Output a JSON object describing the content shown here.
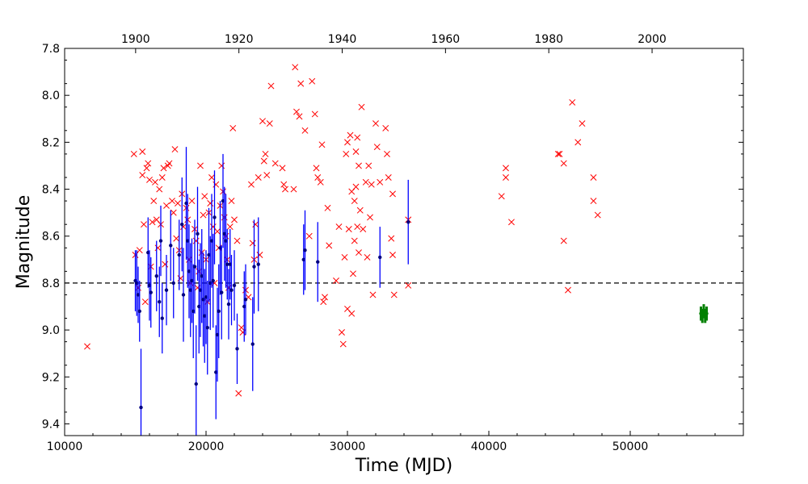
{
  "chart_data": {
    "type": "scatter",
    "title": "",
    "xlabel": "Time (MJD)",
    "ylabel": "Magnitude",
    "top_axis": {
      "ticks": [
        1900,
        1920,
        1940,
        1960,
        1980,
        2000
      ],
      "tick_labels": [
        "1900",
        "1920",
        "1940",
        "1960",
        "1980",
        "2000"
      ]
    },
    "xlim": [
      10000,
      58000
    ],
    "ylim": [
      9.45,
      7.8
    ],
    "y_inverted": true,
    "x_ticks": [
      10000,
      20000,
      30000,
      40000,
      50000
    ],
    "x_tick_labels": [
      "10000",
      "20000",
      "30000",
      "40000",
      "50000"
    ],
    "y_ticks": [
      7.8,
      8.0,
      8.2,
      8.4,
      8.6,
      8.8,
      9.0,
      9.2,
      9.4
    ],
    "y_tick_labels": [
      "7.8",
      "8.0",
      "8.2",
      "8.4",
      "8.6",
      "8.8",
      "9.0",
      "9.2",
      "9.4"
    ],
    "reference_line": {
      "y": 8.8,
      "style": "dashed",
      "color": "#000000"
    },
    "grid": false,
    "colors": {
      "crosses": "#ff0000",
      "errorbars": "#0000ff",
      "points": "#000080",
      "recent": "#008000"
    },
    "series": [
      {
        "marker": "x",
        "color": "#ff0000",
        "points": [
          [
            11600,
            9.07
          ],
          [
            14900,
            8.25
          ],
          [
            15000,
            8.68
          ],
          [
            15200,
            8.82
          ],
          [
            15300,
            8.66
          ],
          [
            15500,
            8.24
          ],
          [
            15500,
            8.34
          ],
          [
            15600,
            8.55
          ],
          [
            15700,
            8.88
          ],
          [
            15800,
            8.31
          ],
          [
            15900,
            8.29
          ],
          [
            16000,
            8.36
          ],
          [
            16100,
            8.73
          ],
          [
            16200,
            8.54
          ],
          [
            16300,
            8.45
          ],
          [
            16400,
            8.37
          ],
          [
            16500,
            8.53
          ],
          [
            16600,
            8.65
          ],
          [
            16700,
            8.4
          ],
          [
            16800,
            8.55
          ],
          [
            16900,
            8.35
          ],
          [
            17000,
            8.31
          ],
          [
            17100,
            8.72
          ],
          [
            17200,
            8.47
          ],
          [
            17300,
            8.3
          ],
          [
            17400,
            8.29
          ],
          [
            17600,
            8.45
          ],
          [
            17700,
            8.5
          ],
          [
            17800,
            8.23
          ],
          [
            17900,
            8.61
          ],
          [
            18000,
            8.46
          ],
          [
            18100,
            8.66
          ],
          [
            18200,
            8.78
          ],
          [
            18300,
            8.42
          ],
          [
            18400,
            8.56
          ],
          [
            18600,
            8.48
          ],
          [
            18700,
            8.53
          ],
          [
            18800,
            8.7
          ],
          [
            18900,
            8.8
          ],
          [
            19000,
            8.45
          ],
          [
            19200,
            8.57
          ],
          [
            19300,
            8.62
          ],
          [
            19400,
            8.82
          ],
          [
            19500,
            8.75
          ],
          [
            19600,
            8.3
          ],
          [
            19700,
            8.67
          ],
          [
            19800,
            8.51
          ],
          [
            19900,
            8.43
          ],
          [
            20000,
            8.7
          ],
          [
            20100,
            8.88
          ],
          [
            20200,
            8.5
          ],
          [
            20300,
            8.46
          ],
          [
            20400,
            8.35
          ],
          [
            20500,
            8.56
          ],
          [
            20600,
            8.8
          ],
          [
            20700,
            8.38
          ],
          [
            20800,
            8.58
          ],
          [
            20900,
            8.65
          ],
          [
            21000,
            8.47
          ],
          [
            21100,
            8.3
          ],
          [
            21200,
            8.41
          ],
          [
            21300,
            8.52
          ],
          [
            21400,
            8.6
          ],
          [
            21500,
            8.7
          ],
          [
            21600,
            8.82
          ],
          [
            21700,
            8.56
          ],
          [
            21800,
            8.45
          ],
          [
            21900,
            8.14
          ],
          [
            22000,
            8.53
          ],
          [
            22200,
            8.62
          ],
          [
            22300,
            9.27
          ],
          [
            22500,
            8.99
          ],
          [
            22600,
            9.01
          ],
          [
            22800,
            8.83
          ],
          [
            23000,
            8.86
          ],
          [
            23200,
            8.38
          ],
          [
            23300,
            8.63
          ],
          [
            23400,
            8.7
          ],
          [
            23500,
            8.55
          ],
          [
            23700,
            8.35
          ],
          [
            23800,
            8.68
          ],
          [
            24000,
            8.11
          ],
          [
            24100,
            8.28
          ],
          [
            24200,
            8.25
          ],
          [
            24300,
            8.34
          ],
          [
            24500,
            8.12
          ],
          [
            24600,
            7.96
          ],
          [
            24900,
            8.29
          ],
          [
            25400,
            8.31
          ],
          [
            25500,
            8.38
          ],
          [
            25600,
            8.4
          ],
          [
            26200,
            8.4
          ],
          [
            26300,
            7.88
          ],
          [
            26400,
            8.07
          ],
          [
            26600,
            8.09
          ],
          [
            26700,
            7.95
          ],
          [
            27000,
            8.15
          ],
          [
            27300,
            8.6
          ],
          [
            27500,
            7.94
          ],
          [
            27700,
            8.08
          ],
          [
            27800,
            8.31
          ],
          [
            27900,
            8.35
          ],
          [
            28100,
            8.37
          ],
          [
            28200,
            8.21
          ],
          [
            28300,
            8.88
          ],
          [
            28400,
            8.86
          ],
          [
            28600,
            8.48
          ],
          [
            28700,
            8.64
          ],
          [
            29200,
            8.79
          ],
          [
            29400,
            8.56
          ],
          [
            29600,
            9.01
          ],
          [
            29700,
            9.06
          ],
          [
            29800,
            8.69
          ],
          [
            29900,
            8.25
          ],
          [
            30000,
            8.2
          ],
          [
            30000,
            8.91
          ],
          [
            30100,
            8.57
          ],
          [
            30200,
            8.17
          ],
          [
            30300,
            8.41
          ],
          [
            30300,
            8.93
          ],
          [
            30400,
            8.76
          ],
          [
            30500,
            8.62
          ],
          [
            30500,
            8.45
          ],
          [
            30600,
            8.24
          ],
          [
            30600,
            8.39
          ],
          [
            30700,
            8.18
          ],
          [
            30700,
            8.56
          ],
          [
            30800,
            8.3
          ],
          [
            30800,
            8.67
          ],
          [
            30900,
            8.49
          ],
          [
            31000,
            8.05
          ],
          [
            31100,
            8.57
          ],
          [
            31300,
            8.37
          ],
          [
            31400,
            8.69
          ],
          [
            31500,
            8.3
          ],
          [
            31600,
            8.52
          ],
          [
            31700,
            8.38
          ],
          [
            31800,
            8.85
          ],
          [
            32000,
            8.12
          ],
          [
            32100,
            8.22
          ],
          [
            32300,
            8.37
          ],
          [
            32700,
            8.14
          ],
          [
            32800,
            8.25
          ],
          [
            32900,
            8.35
          ],
          [
            33100,
            8.61
          ],
          [
            33200,
            8.68
          ],
          [
            33200,
            8.42
          ],
          [
            33300,
            8.85
          ],
          [
            34300,
            8.53
          ],
          [
            34300,
            8.81
          ],
          [
            40900,
            8.43
          ],
          [
            41200,
            8.31
          ],
          [
            41200,
            8.35
          ],
          [
            41600,
            8.54
          ],
          [
            44900,
            8.25
          ],
          [
            45000,
            8.25
          ],
          [
            45300,
            8.29
          ],
          [
            45300,
            8.62
          ],
          [
            45600,
            8.83
          ],
          [
            45900,
            8.03
          ],
          [
            46300,
            8.2
          ],
          [
            46600,
            8.12
          ],
          [
            47400,
            8.35
          ],
          [
            47400,
            8.45
          ],
          [
            47700,
            8.51
          ]
        ]
      },
      {
        "marker": "point-with-errorbar",
        "color": "#000080",
        "errorbar_color": "#0000ff",
        "points": [
          [
            15000,
            8.79,
            0.13
          ],
          [
            15100,
            8.8,
            0.14
          ],
          [
            15200,
            8.85,
            0.12
          ],
          [
            15300,
            8.92,
            0.13
          ],
          [
            15400,
            9.33,
            0.25
          ],
          [
            15900,
            8.67,
            0.15
          ],
          [
            16000,
            8.81,
            0.15
          ],
          [
            16100,
            8.84,
            0.15
          ],
          [
            16500,
            8.77,
            0.15
          ],
          [
            16700,
            8.88,
            0.15
          ],
          [
            16800,
            8.62,
            0.15
          ],
          [
            16900,
            8.95,
            0.15
          ],
          [
            17200,
            8.83,
            0.15
          ],
          [
            17500,
            8.64,
            0.15
          ],
          [
            17700,
            8.8,
            0.15
          ],
          [
            18100,
            8.68,
            0.15
          ],
          [
            18300,
            8.55,
            0.2
          ],
          [
            18400,
            8.85,
            0.2
          ],
          [
            18600,
            8.46,
            0.24
          ],
          [
            18700,
            8.62,
            0.2
          ],
          [
            18800,
            8.75,
            0.2
          ],
          [
            18900,
            8.83,
            0.2
          ],
          [
            19000,
            8.79,
            0.18
          ],
          [
            19100,
            8.92,
            0.2
          ],
          [
            19200,
            8.73,
            0.2
          ],
          [
            19300,
            9.23,
            0.25
          ],
          [
            19400,
            8.59,
            0.2
          ],
          [
            19500,
            8.9,
            0.2
          ],
          [
            19600,
            8.83,
            0.2
          ],
          [
            19700,
            8.77,
            0.2
          ],
          [
            19800,
            8.87,
            0.2
          ],
          [
            19900,
            8.94,
            0.2
          ],
          [
            20000,
            8.86,
            0.2
          ],
          [
            20100,
            8.99,
            0.2
          ],
          [
            20200,
            8.68,
            0.2
          ],
          [
            20300,
            8.8,
            0.2
          ],
          [
            20400,
            8.62,
            0.2
          ],
          [
            20500,
            8.79,
            0.2
          ],
          [
            20600,
            8.52,
            0.2
          ],
          [
            20700,
            9.18,
            0.2
          ],
          [
            20800,
            9.02,
            0.2
          ],
          [
            20900,
            8.92,
            0.2
          ],
          [
            21000,
            8.65,
            0.2
          ],
          [
            21100,
            8.84,
            0.2
          ],
          [
            21200,
            8.45,
            0.2
          ],
          [
            21300,
            8.59,
            0.2
          ],
          [
            21400,
            8.62,
            0.2
          ],
          [
            21500,
            8.72,
            0.15
          ],
          [
            21600,
            8.89,
            0.15
          ],
          [
            21700,
            8.72,
            0.15
          ],
          [
            21800,
            8.83,
            0.15
          ],
          [
            22000,
            8.81,
            0.15
          ],
          [
            22200,
            9.08,
            0.15
          ],
          [
            22700,
            8.9,
            0.15
          ],
          [
            22800,
            8.87,
            0.15
          ],
          [
            23300,
            9.06,
            0.2
          ],
          [
            23400,
            8.73,
            0.2
          ],
          [
            23700,
            8.72,
            0.2
          ],
          [
            26900,
            8.7,
            0.15
          ],
          [
            27000,
            8.66,
            0.17
          ],
          [
            27900,
            8.71,
            0.17
          ],
          [
            32300,
            8.69,
            0.13
          ],
          [
            34300,
            8.54,
            0.18
          ]
        ]
      },
      {
        "marker": "point-with-errorbar",
        "color": "#008000",
        "errorbar_color": "#008000",
        "points": [
          [
            55000,
            8.93,
            0.03
          ],
          [
            55100,
            8.94,
            0.03
          ],
          [
            55200,
            8.92,
            0.03
          ],
          [
            55300,
            8.94,
            0.03
          ],
          [
            55400,
            8.93,
            0.03
          ]
        ]
      }
    ]
  }
}
